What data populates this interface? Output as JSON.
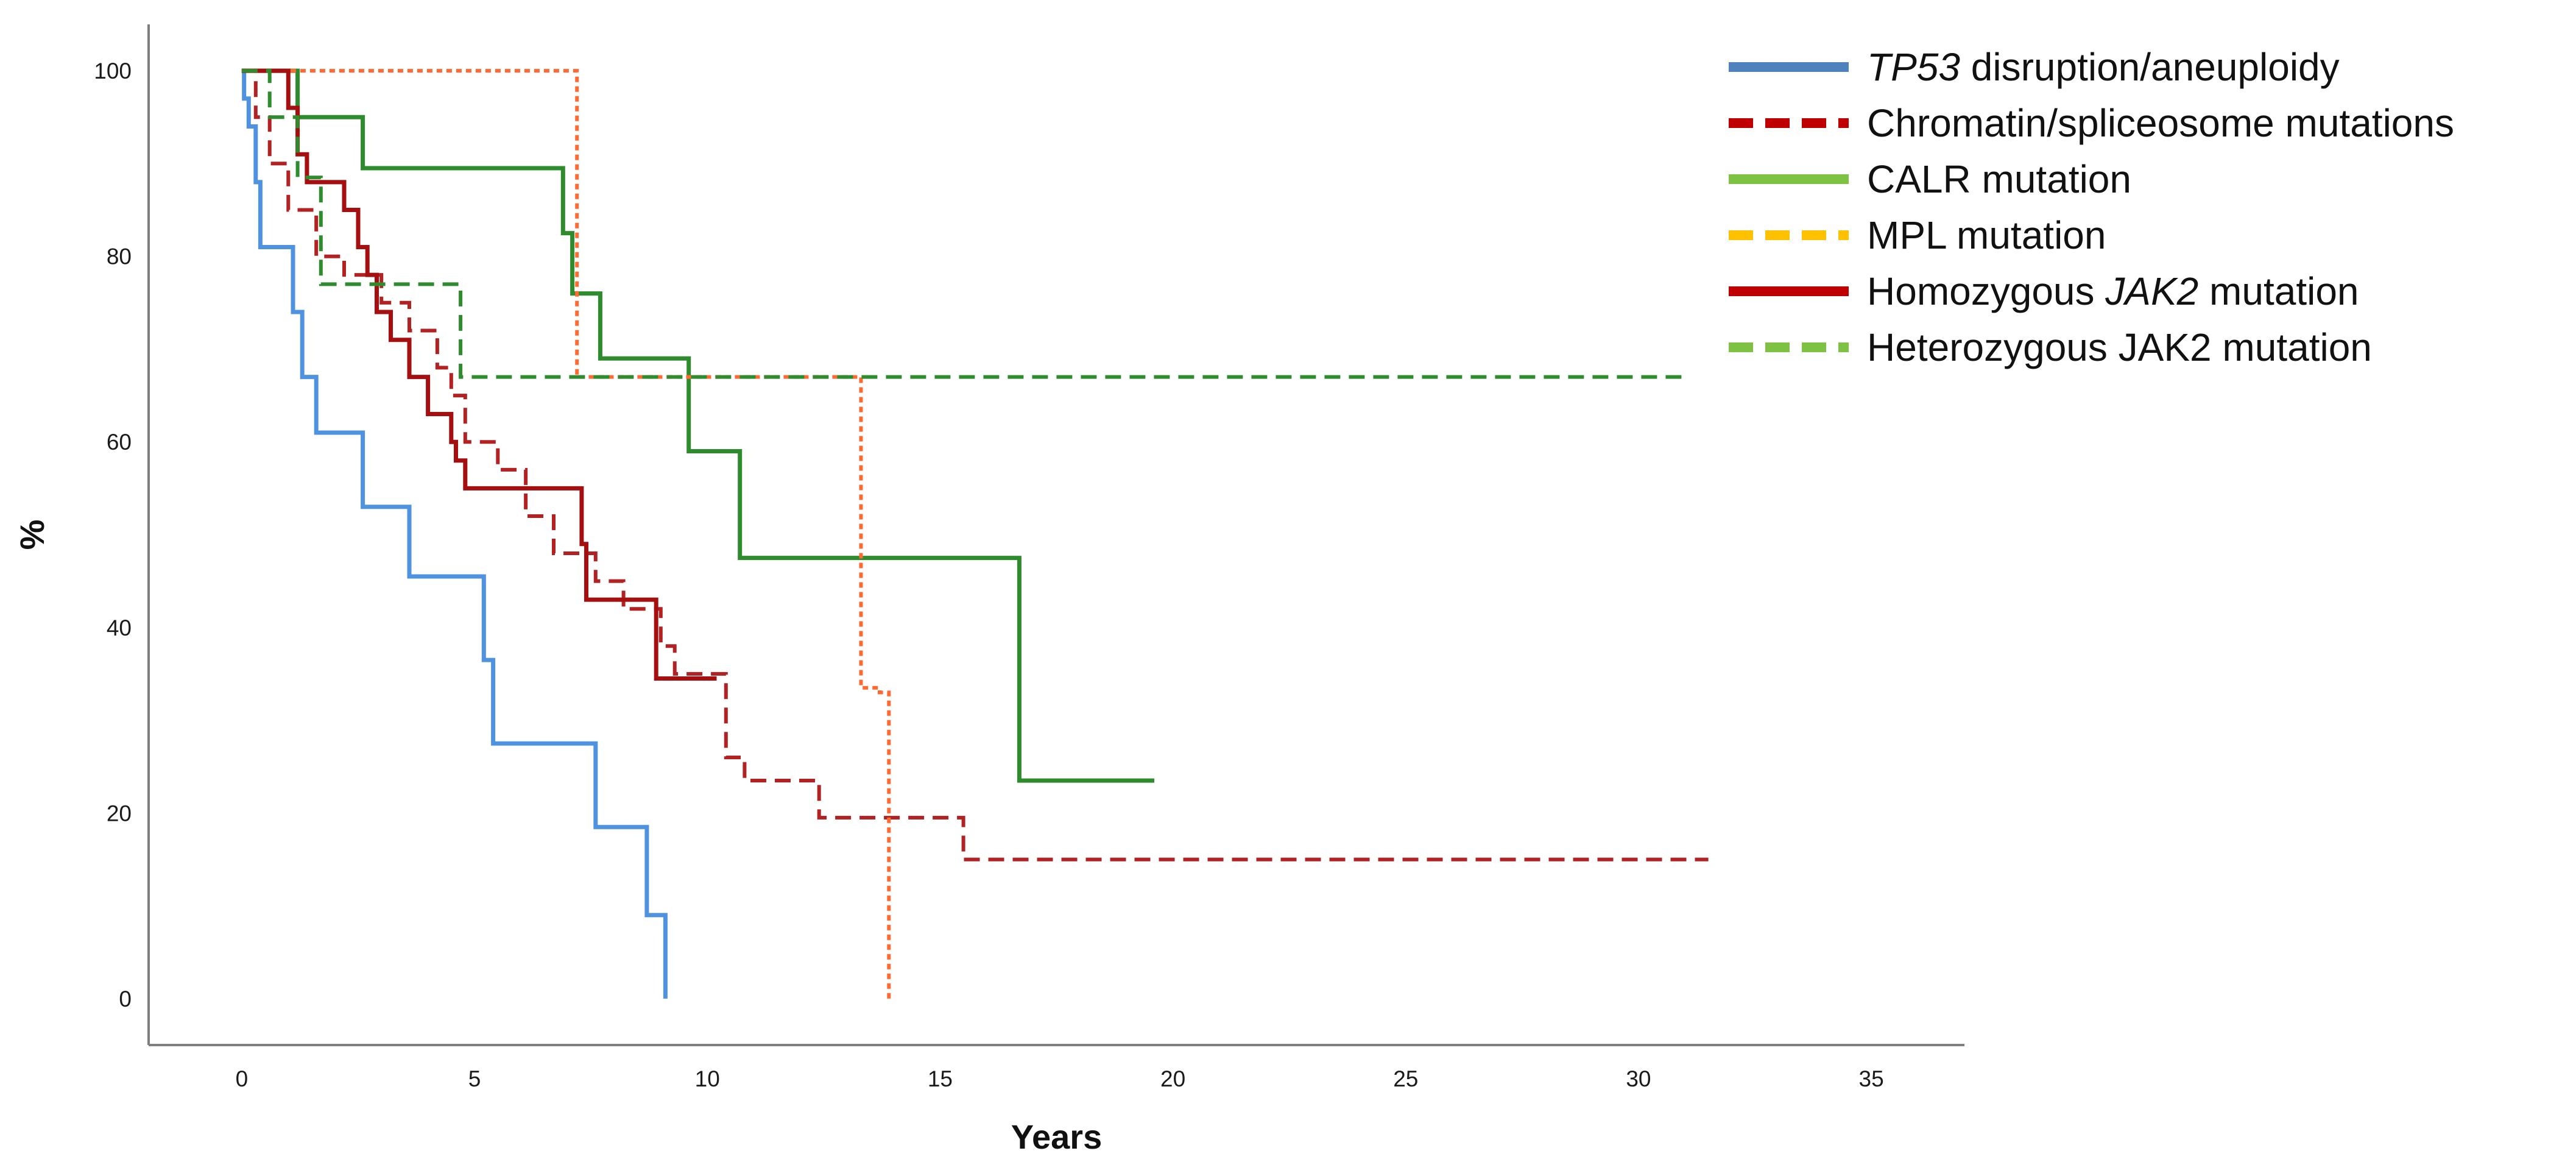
{
  "chart_data": {
    "type": "line",
    "subtype": "kaplan-meier step plot",
    "title": "",
    "xlabel": "Years",
    "ylabel": "%",
    "xlim": [
      -2,
      37
    ],
    "ylim": [
      -5,
      105
    ],
    "xticks": [
      0,
      5,
      10,
      15,
      20,
      25,
      30,
      35
    ],
    "yticks": [
      0,
      20,
      40,
      60,
      80,
      100
    ],
    "grid": false,
    "legend_position": "top-right",
    "legend": [
      {
        "parts": [
          {
            "text": "TP53",
            "italic": true
          },
          {
            "text": " disruption/aneuploidy",
            "italic": false
          }
        ],
        "color": "#4f81bd",
        "dash": "solid"
      },
      {
        "parts": [
          {
            "text": "Chromatin/spliceosome mutations",
            "italic": false
          }
        ],
        "color": "#c00000",
        "dash": "dashed"
      },
      {
        "parts": [
          {
            "text": "CALR mutation",
            "italic": false
          }
        ],
        "color": "#7dc242",
        "dash": "solid"
      },
      {
        "parts": [
          {
            "text": "MPL mutation",
            "italic": false
          }
        ],
        "color": "#ffc000",
        "dash": "dashed"
      },
      {
        "parts": [
          {
            "text": "Homozygous ",
            "italic": false
          },
          {
            "text": "JAK2",
            "italic": true
          },
          {
            "text": " mutation",
            "italic": false
          }
        ],
        "color": "#c00000",
        "dash": "solid"
      },
      {
        "parts": [
          {
            "text": "Heterozygous JAK2 mutation",
            "italic": false
          }
        ],
        "color": "#7dc242",
        "dash": "dashed"
      }
    ],
    "series": [
      {
        "legend_index": 0,
        "color": "#4f93e0",
        "dash": "solid",
        "x": [
          0,
          0.05,
          0.15,
          0.3,
          0.4,
          0.9,
          1.1,
          1.3,
          1.6,
          2.6,
          3.6,
          5.2,
          5.4,
          7.6,
          8.7,
          9.1
        ],
        "y": [
          100,
          97,
          94,
          88,
          81,
          81,
          74,
          67,
          61,
          53,
          45.5,
          36.5,
          27.5,
          18.5,
          9,
          0
        ]
      },
      {
        "legend_index": 1,
        "color": "#b22222",
        "dash": "dashed",
        "x": [
          0,
          0.3,
          0.6,
          1.0,
          1.6,
          2.2,
          3.0,
          3.6,
          4.2,
          4.5,
          4.8,
          5.5,
          6.1,
          6.7,
          7.6,
          8.2,
          9.0,
          9.3,
          10.4,
          10.8,
          12.4,
          15.5,
          31.5
        ],
        "y": [
          100,
          95,
          90,
          85,
          80,
          78,
          75,
          72,
          68,
          65,
          60,
          57,
          52,
          48,
          45,
          42,
          38,
          35,
          26,
          23.5,
          19.5,
          15,
          15
        ]
      },
      {
        "legend_index": 2,
        "color": "#2e8b2e",
        "dash": "solid",
        "x": [
          0,
          0.3,
          1.2,
          2.6,
          6.9,
          7.1,
          7.7,
          9.6,
          10.7,
          16.7,
          19.6
        ],
        "y": [
          100,
          100,
          95,
          89.5,
          82.5,
          76,
          69,
          59,
          47.5,
          23.5,
          23.5
        ]
      },
      {
        "legend_index": 3,
        "color": "#ff6a33",
        "dash": "dotted",
        "x": [
          0,
          7.2,
          13.3,
          13.7,
          13.9
        ],
        "y": [
          100,
          67,
          33.5,
          33,
          0
        ]
      },
      {
        "legend_index": 4,
        "color": "#a50f0f",
        "dash": "solid",
        "x": [
          0,
          1.0,
          1.2,
          1.4,
          1.8,
          2.2,
          2.5,
          2.7,
          2.9,
          3.2,
          3.4,
          3.6,
          4.0,
          4.5,
          4.6,
          4.8,
          7.3,
          7.4,
          8.9,
          10.2
        ],
        "y": [
          100,
          96,
          91,
          88,
          88,
          85,
          81,
          78,
          74,
          71,
          71,
          67,
          63,
          60,
          58,
          55,
          49,
          43,
          34.5,
          34.5
        ]
      },
      {
        "legend_index": 5,
        "color": "#2e8b2e",
        "dash": "dashed",
        "x": [
          0,
          0.6,
          1.2,
          1.7,
          4.7,
          31.0
        ],
        "y": [
          100,
          95,
          88.5,
          77,
          67,
          67
        ]
      }
    ]
  }
}
